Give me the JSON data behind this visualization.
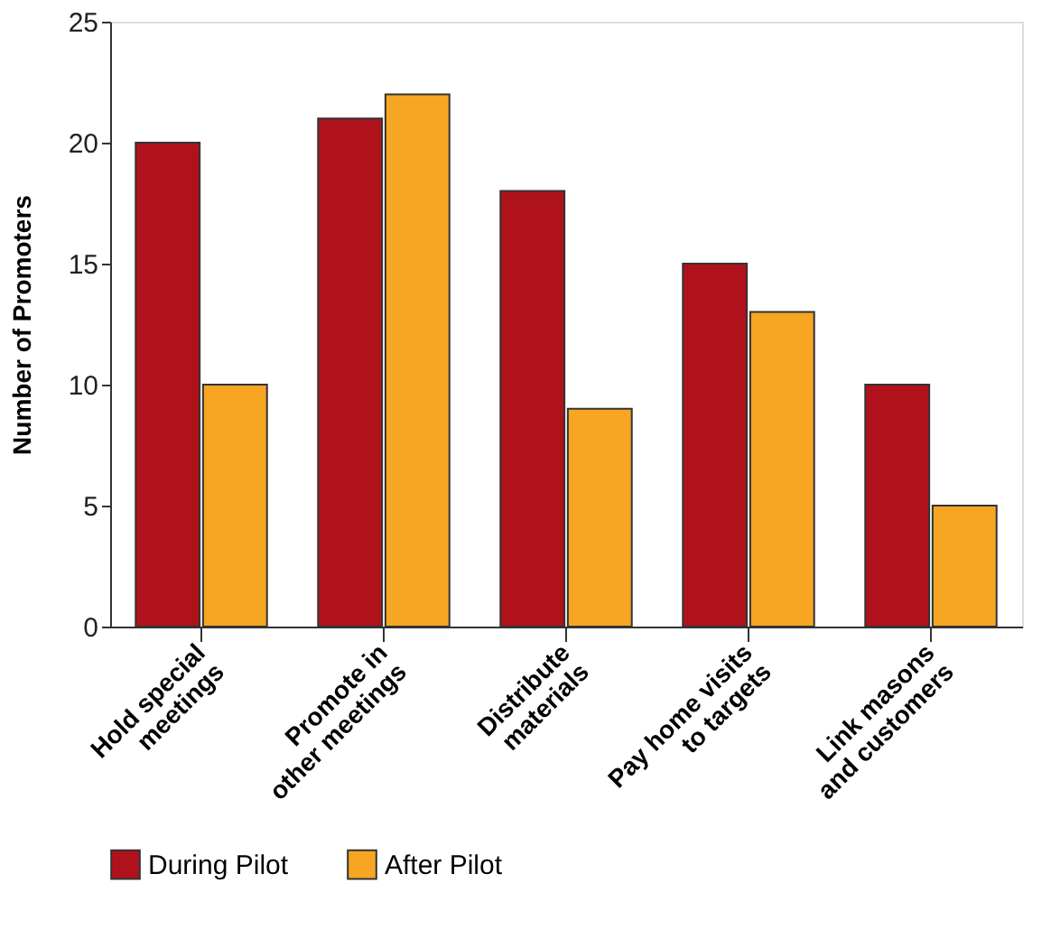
{
  "chart_data": {
    "type": "bar",
    "ylabel": "Number of Promoters",
    "categories": [
      "Hold special\nmeetings",
      "Promote in\nother meetings",
      "Distribute\nmaterials",
      "Pay home visits\nto targets",
      "Link masons\nand customers"
    ],
    "series": [
      {
        "name": "During Pilot",
        "color": "#b0121b",
        "values": [
          20,
          21,
          18,
          15,
          10
        ]
      },
      {
        "name": "After Pilot",
        "color": "#f6a623",
        "values": [
          10,
          22,
          9,
          13,
          5
        ]
      }
    ],
    "ylim": [
      0,
      25
    ],
    "yticks": [
      0,
      5,
      10,
      15,
      20,
      25
    ],
    "grid": false,
    "legend": "bottom"
  }
}
